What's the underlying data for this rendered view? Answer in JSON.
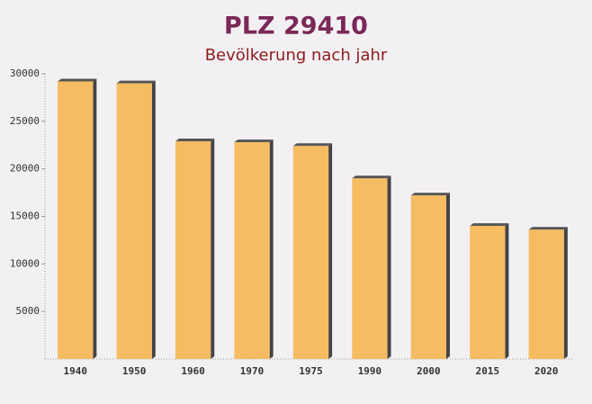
{
  "chart_data": {
    "type": "bar",
    "title": "PLZ 29410",
    "subtitle": "Bevölkerung nach jahr",
    "categories": [
      "1940",
      "1950",
      "1960",
      "1970",
      "1975",
      "1990",
      "2000",
      "2015",
      "2020"
    ],
    "values": [
      29200,
      29000,
      22900,
      22800,
      22400,
      19000,
      17200,
      14000,
      13600
    ],
    "color": "#f5bc62",
    "ylim": [
      0,
      30000
    ],
    "yticks": [
      5000,
      10000,
      15000,
      20000,
      25000,
      30000
    ],
    "grid": false
  }
}
